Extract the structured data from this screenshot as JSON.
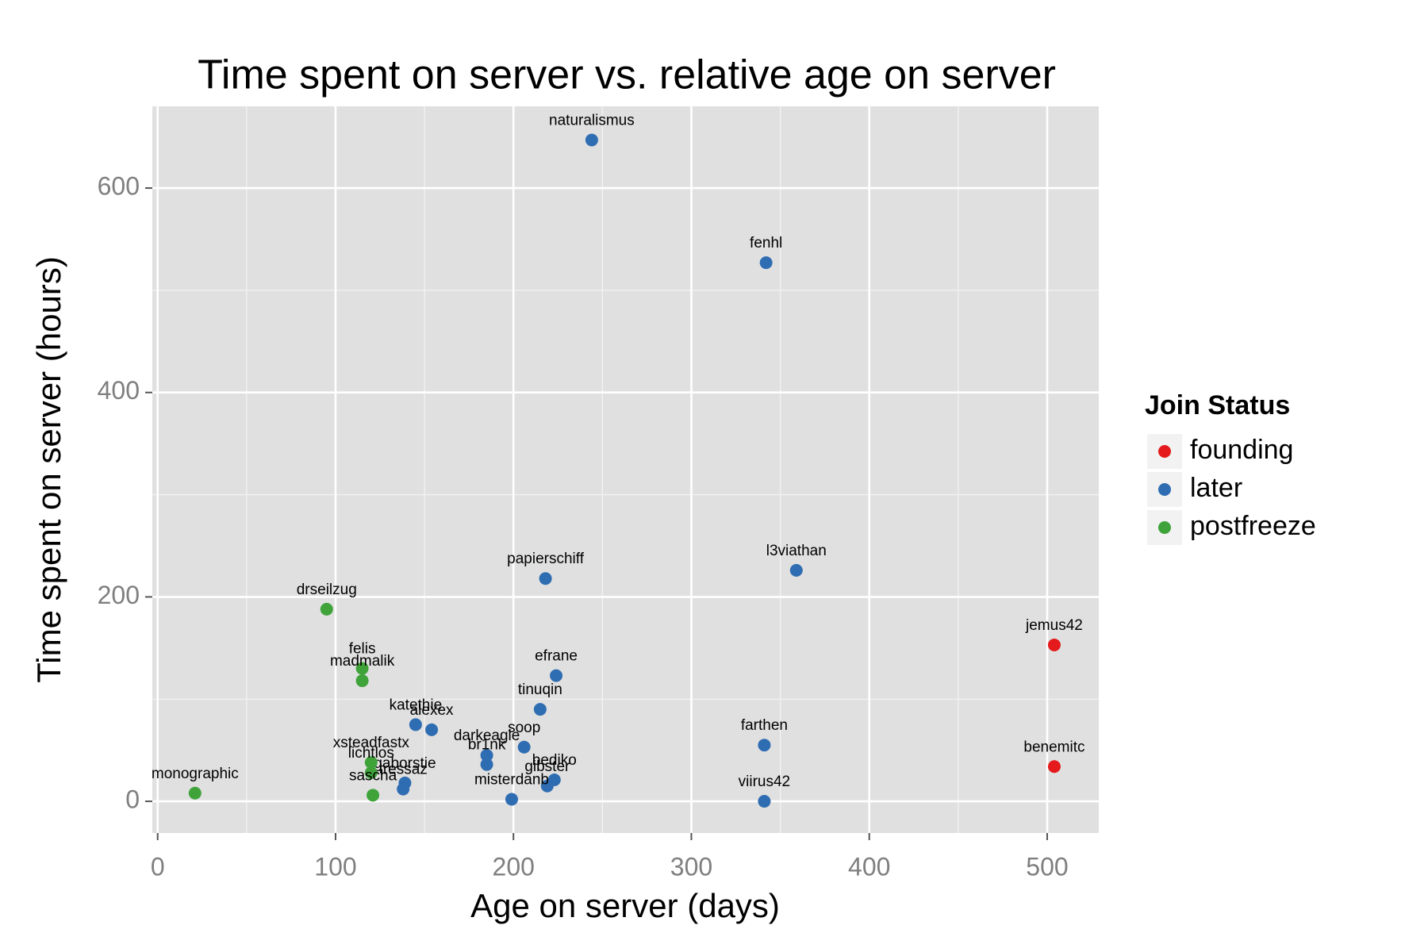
{
  "chart_data": {
    "type": "scatter",
    "title": "Time spent on server vs. relative age on server",
    "x_label": "Age on server (days)",
    "y_label": "Time spent on server (hours)",
    "legend_title": "Join Status",
    "legend_position": "right",
    "grid": true,
    "minor_grid": true,
    "xlim": [
      -3,
      529
    ],
    "ylim": [
      -31,
      680
    ],
    "xticks": [
      0,
      100,
      200,
      300,
      400,
      500
    ],
    "yticks": [
      0,
      200,
      400,
      600
    ],
    "series": [
      {
        "name": "founding",
        "color": "#e41a1c",
        "x": [
          504,
          504
        ],
        "values": [
          153,
          34
        ],
        "labels": [
          "jemus42",
          "benemitc"
        ]
      },
      {
        "name": "later",
        "color": "#2f6db2",
        "x": [
          244,
          342,
          218,
          359,
          224,
          215,
          145,
          154,
          341,
          206,
          185,
          185,
          223,
          219,
          199,
          341,
          139,
          138
        ],
        "values": [
          647,
          527,
          218,
          226,
          123,
          90,
          75,
          70,
          55,
          53,
          45,
          36,
          21,
          15,
          2,
          0,
          18,
          12
        ],
        "labels": [
          "naturalismus",
          "fenhl",
          "papierschiff",
          "l3viathan",
          "efrane",
          "tinuqin",
          "katethie",
          "alexex",
          "farthen",
          "soop",
          "darkeagle",
          "br1nk",
          "bediko",
          "gibster",
          "misterdanb",
          "viirus42",
          "gaborstie",
          "tressaz"
        ]
      },
      {
        "name": "postfreeze",
        "color": "#3fa33a",
        "x": [
          95,
          115,
          115,
          120,
          120,
          121,
          21
        ],
        "values": [
          188,
          130,
          118,
          38,
          28,
          6,
          8
        ],
        "labels": [
          "drseilzug",
          "felis",
          "madmalik",
          "xsteadfastx",
          "lichtlos",
          "sascha",
          "monographic"
        ]
      }
    ]
  }
}
